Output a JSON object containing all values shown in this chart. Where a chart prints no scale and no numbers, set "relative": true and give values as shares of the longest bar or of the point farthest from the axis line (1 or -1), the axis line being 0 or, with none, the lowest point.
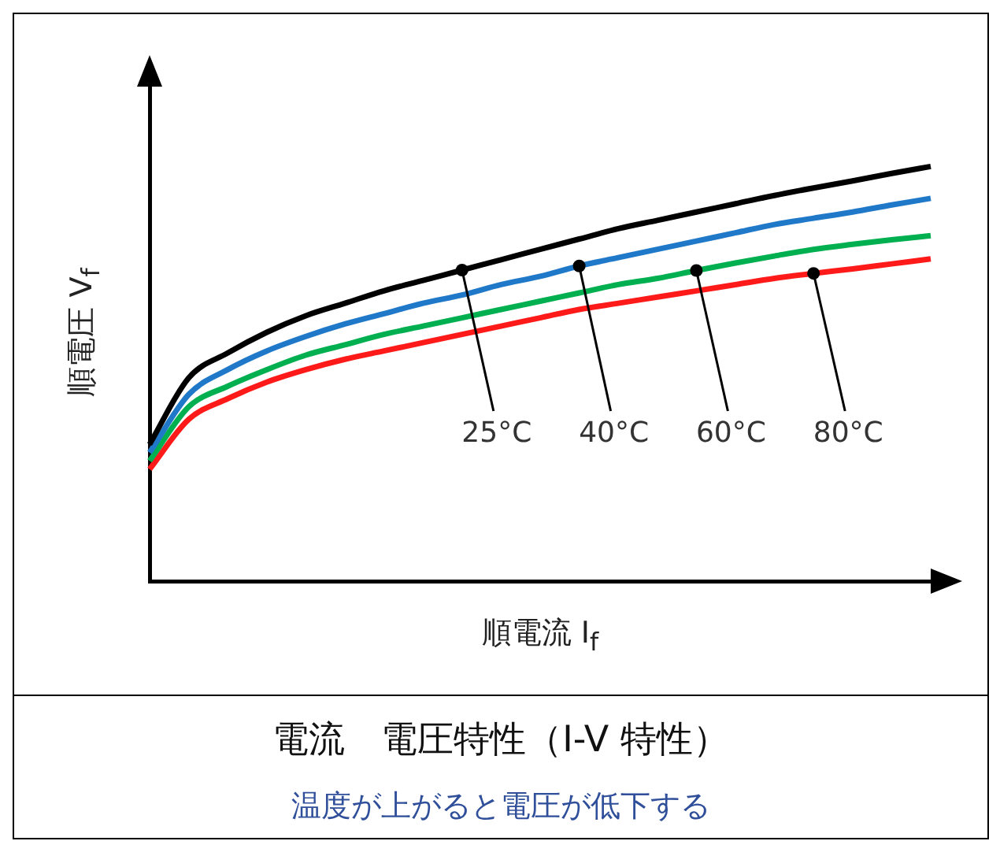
{
  "chart_data": {
    "type": "line",
    "relative": true,
    "title": "電流　電圧特性（I-V 特性）",
    "subtitle": "温度が上がると電圧が低下する",
    "xlabel": "順電流 I$_{f}$",
    "ylabel": "順電圧 V$_{f}$",
    "line_style": "solid",
    "categories": [
      null,
      null,
      null,
      null,
      null,
      null,
      null,
      null,
      null,
      null,
      null,
      null,
      null,
      null,
      null,
      null,
      null,
      null,
      null,
      null,
      null
    ],
    "series": [
      {
        "name": "25°C",
        "color": "#000000",
        "values": [
          0.33,
          0.49,
          0.55,
          0.6,
          0.64,
          0.67,
          0.7,
          0.725,
          0.75,
          0.775,
          0.8,
          0.825,
          0.85,
          0.87,
          0.89,
          0.91,
          0.93,
          0.948,
          0.965,
          0.983,
          1.0
        ]
      },
      {
        "name": "40°C",
        "color": "#1f78c8",
        "values": [
          0.31,
          0.45,
          0.51,
          0.555,
          0.59,
          0.62,
          0.645,
          0.67,
          0.69,
          0.715,
          0.735,
          0.76,
          0.78,
          0.8,
          0.82,
          0.84,
          0.86,
          0.875,
          0.89,
          0.907,
          0.923
        ]
      },
      {
        "name": "60°C",
        "color": "#00b050",
        "values": [
          0.29,
          0.42,
          0.47,
          0.51,
          0.545,
          0.57,
          0.595,
          0.615,
          0.635,
          0.655,
          0.675,
          0.695,
          0.715,
          0.73,
          0.749,
          0.767,
          0.784,
          0.8,
          0.812,
          0.823,
          0.833
        ]
      },
      {
        "name": "80°C",
        "color": "#ff1a1a",
        "values": [
          0.27,
          0.39,
          0.44,
          0.48,
          0.51,
          0.535,
          0.555,
          0.575,
          0.595,
          0.615,
          0.635,
          0.655,
          0.67,
          0.685,
          0.7,
          0.715,
          0.73,
          0.742,
          0.753,
          0.765,
          0.777
        ]
      }
    ]
  }
}
